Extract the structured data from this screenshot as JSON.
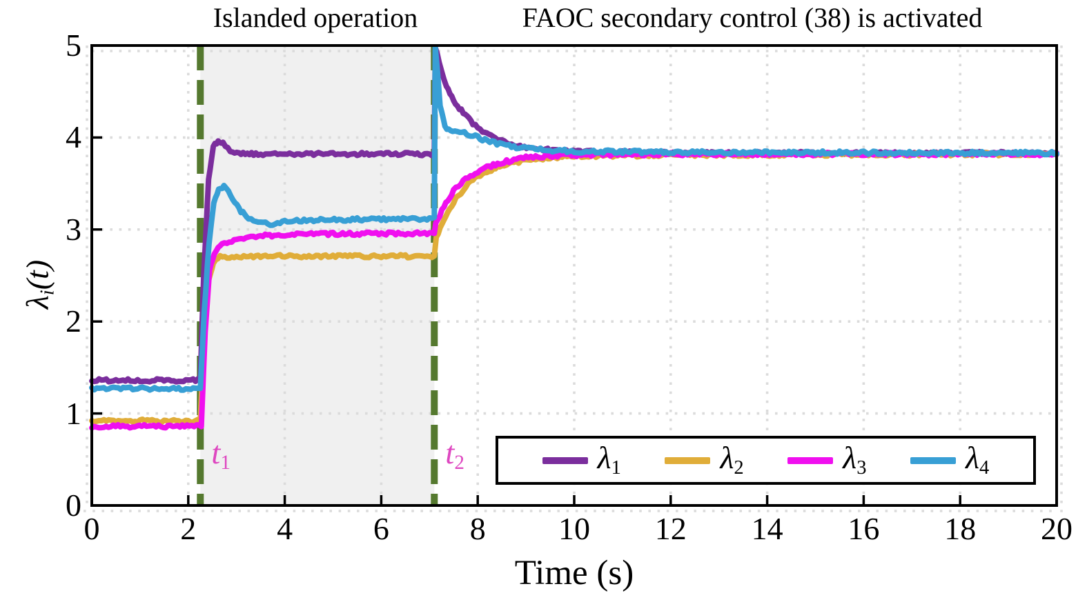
{
  "chart_data": {
    "type": "line",
    "title_left": "Islanded operation",
    "title_right": "FAOC secondary control (38) is activated",
    "xlabel": "Time (s)",
    "ylabel": {
      "symbol": "λ",
      "sub": "i",
      "rest": "(t)"
    },
    "xlim": [
      0,
      20
    ],
    "ylim": [
      0,
      5
    ],
    "xticks": [
      0,
      2,
      4,
      6,
      8,
      10,
      12,
      14,
      16,
      18,
      20
    ],
    "yticks": [
      0,
      1,
      2,
      3,
      4,
      5
    ],
    "grid": true,
    "grid_color": "#dbdbdb",
    "shade_color": "#f0f0f0",
    "event_line_color": "#55792f",
    "event_label_color": "#de47c0",
    "shaded_region": [
      2.25,
      7.1
    ],
    "events": [
      {
        "symbol": "t",
        "sub": "1",
        "x": 2.25
      },
      {
        "symbol": "t",
        "sub": "2",
        "x": 7.1
      }
    ],
    "legend_position": "bottom-right",
    "series": [
      {
        "name": "lambda_1",
        "symbol": "λ",
        "sub": "1",
        "color": "#7b2e9d",
        "points": [
          [
            0,
            1.36
          ],
          [
            2.25,
            1.36
          ],
          [
            2.32,
            2.5
          ],
          [
            2.42,
            3.55
          ],
          [
            2.52,
            3.9
          ],
          [
            2.62,
            3.97
          ],
          [
            2.72,
            3.94
          ],
          [
            2.87,
            3.86
          ],
          [
            3.05,
            3.83
          ],
          [
            3.4,
            3.82
          ],
          [
            7.1,
            3.82
          ],
          [
            7.12,
            5.0
          ],
          [
            7.2,
            4.82
          ],
          [
            7.35,
            4.55
          ],
          [
            7.5,
            4.4
          ],
          [
            7.7,
            4.27
          ],
          [
            7.9,
            4.15
          ],
          [
            8.1,
            4.07
          ],
          [
            8.4,
            3.98
          ],
          [
            8.7,
            3.92
          ],
          [
            9.1,
            3.88
          ],
          [
            9.6,
            3.86
          ],
          [
            10.5,
            3.84
          ],
          [
            12,
            3.83
          ],
          [
            20,
            3.83
          ]
        ]
      },
      {
        "name": "lambda_2",
        "symbol": "λ",
        "sub": "2",
        "color": "#e0ad39",
        "points": [
          [
            0,
            0.92
          ],
          [
            2.25,
            0.92
          ],
          [
            2.33,
            1.9
          ],
          [
            2.42,
            2.45
          ],
          [
            2.52,
            2.64
          ],
          [
            2.66,
            2.7
          ],
          [
            3.0,
            2.71
          ],
          [
            7.1,
            2.71
          ],
          [
            7.14,
            2.92
          ],
          [
            7.3,
            3.1
          ],
          [
            7.5,
            3.3
          ],
          [
            7.8,
            3.5
          ],
          [
            8.1,
            3.61
          ],
          [
            8.5,
            3.7
          ],
          [
            9.0,
            3.75
          ],
          [
            9.5,
            3.78
          ],
          [
            10,
            3.8
          ],
          [
            12,
            3.81
          ],
          [
            20,
            3.82
          ]
        ]
      },
      {
        "name": "lambda_3",
        "symbol": "λ",
        "sub": "3",
        "color": "#f00fef",
        "points": [
          [
            0,
            0.86
          ],
          [
            2.27,
            0.86
          ],
          [
            2.35,
            1.9
          ],
          [
            2.44,
            2.55
          ],
          [
            2.54,
            2.75
          ],
          [
            2.7,
            2.84
          ],
          [
            3.0,
            2.89
          ],
          [
            3.5,
            2.93
          ],
          [
            4.2,
            2.95
          ],
          [
            7.1,
            2.96
          ],
          [
            7.13,
            3.06
          ],
          [
            7.3,
            3.26
          ],
          [
            7.5,
            3.42
          ],
          [
            7.8,
            3.57
          ],
          [
            8.1,
            3.66
          ],
          [
            8.5,
            3.73
          ],
          [
            9.0,
            3.78
          ],
          [
            9.5,
            3.8
          ],
          [
            10,
            3.81
          ],
          [
            12,
            3.82
          ],
          [
            20,
            3.82
          ]
        ]
      },
      {
        "name": "lambda_4",
        "symbol": "λ",
        "sub": "4",
        "color": "#389fd5",
        "points": [
          [
            0,
            1.27
          ],
          [
            2.25,
            1.27
          ],
          [
            2.33,
            2.1
          ],
          [
            2.43,
            2.85
          ],
          [
            2.53,
            3.28
          ],
          [
            2.63,
            3.44
          ],
          [
            2.74,
            3.47
          ],
          [
            2.88,
            3.37
          ],
          [
            3.05,
            3.22
          ],
          [
            3.25,
            3.12
          ],
          [
            3.5,
            3.07
          ],
          [
            3.75,
            3.06
          ],
          [
            4.1,
            3.09
          ],
          [
            4.6,
            3.1
          ],
          [
            5.5,
            3.11
          ],
          [
            7.1,
            3.12
          ],
          [
            7.12,
            5.0
          ],
          [
            7.22,
            4.35
          ],
          [
            7.32,
            4.12
          ],
          [
            7.48,
            4.06
          ],
          [
            7.68,
            4.06
          ],
          [
            7.9,
            4.02
          ],
          [
            8.15,
            3.97
          ],
          [
            8.5,
            3.92
          ],
          [
            9.0,
            3.88
          ],
          [
            9.5,
            3.86
          ],
          [
            10,
            3.85
          ],
          [
            12,
            3.84
          ],
          [
            20,
            3.83
          ]
        ]
      }
    ],
    "line_width": 8,
    "noise_amplitude": 2.3
  }
}
